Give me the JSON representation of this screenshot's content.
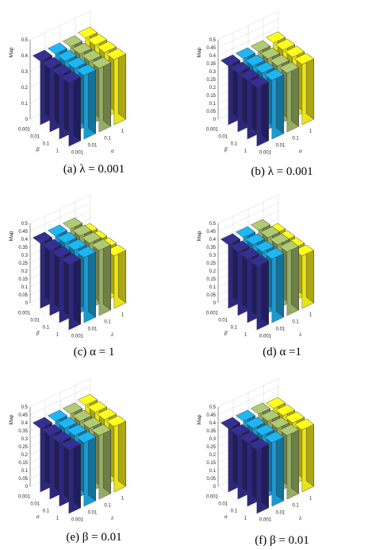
{
  "colors": {
    "c1": "#2f2a84",
    "c2": "#1aa3dc",
    "c3": "#9eb567",
    "c4": "#f5ef1a"
  },
  "panels_meta": [
    {
      "caption": "(a) λ = 0.001"
    },
    {
      "caption": "(b) λ = 0.001"
    },
    {
      "caption": "(c) α = 1"
    },
    {
      "caption": "(d) α =1"
    },
    {
      "caption": "(e) β = 0.01"
    },
    {
      "caption": "(f) β = 0.01"
    }
  ],
  "chart_data": [
    {
      "type": "bar3d",
      "ylabel": "Map",
      "ylim": [
        0,
        0.5
      ],
      "yticks": [
        "0",
        "0.1",
        "0.2",
        "0.3",
        "0.4",
        "0.5"
      ],
      "row_axis": {
        "label": "β",
        "ticks": [
          "0.001",
          "0.01",
          "0.1",
          "1"
        ]
      },
      "col_axis": {
        "label": "α",
        "ticks": [
          "0.001",
          "0.01",
          "0.1",
          "1"
        ]
      },
      "values": [
        [
          0.4,
          0.4,
          0.4,
          0.41
        ],
        [
          0.4,
          0.4,
          0.4,
          0.41
        ],
        [
          0.4,
          0.4,
          0.4,
          0.41
        ],
        [
          0.4,
          0.4,
          0.4,
          0.41
        ]
      ]
    },
    {
      "type": "bar3d",
      "ylabel": "Map",
      "ylim": [
        0,
        0.5
      ],
      "yticks": [
        "0",
        "0.05",
        "0.1",
        "0.15",
        "0.2",
        "0.25",
        "0.3",
        "0.35",
        "0.4",
        "0.45",
        "0.5"
      ],
      "row_axis": {
        "label": "β",
        "ticks": [
          "0.001",
          "0.01",
          "0.1",
          "1"
        ]
      },
      "col_axis": {
        "label": "α",
        "ticks": [
          "0.001",
          "0.01",
          "0.1",
          "1"
        ]
      },
      "values": [
        [
          0.37,
          0.37,
          0.37,
          0.38
        ],
        [
          0.37,
          0.37,
          0.37,
          0.38
        ],
        [
          0.37,
          0.37,
          0.37,
          0.38
        ],
        [
          0.37,
          0.37,
          0.37,
          0.38
        ]
      ]
    },
    {
      "type": "bar3d",
      "ylabel": "Map",
      "ylim": [
        0,
        0.5
      ],
      "yticks": [
        "0",
        "0.05",
        "0.1",
        "0.15",
        "0.2",
        "0.25",
        "0.3",
        "0.35",
        "0.4",
        "0.45",
        "0.5"
      ],
      "row_axis": {
        "label": "β",
        "ticks": [
          "0.001",
          "0.01",
          "0.1",
          "1"
        ]
      },
      "col_axis": {
        "label": "λ",
        "ticks": [
          "0.001",
          "0.01",
          "0.1",
          "1"
        ]
      },
      "values": [
        [
          0.41,
          0.41,
          0.41,
          0.33
        ],
        [
          0.41,
          0.41,
          0.41,
          0.33
        ],
        [
          0.41,
          0.41,
          0.41,
          0.33
        ],
        [
          0.41,
          0.41,
          0.41,
          0.33
        ]
      ]
    },
    {
      "type": "bar3d",
      "ylabel": "Map",
      "ylim": [
        0,
        0.5
      ],
      "yticks": [
        "0",
        "0.05",
        "0.1",
        "0.15",
        "0.2",
        "0.25",
        "0.3",
        "0.35",
        "0.4",
        "0.45",
        "0.5"
      ],
      "row_axis": {
        "label": "β",
        "ticks": [
          "0.001",
          "0.01",
          "0.1",
          "1"
        ]
      },
      "col_axis": {
        "label": "λ",
        "ticks": [
          "0.001",
          "0.01",
          "0.1",
          "1"
        ]
      },
      "values": [
        [
          0.4,
          0.4,
          0.4,
          0.33
        ],
        [
          0.4,
          0.4,
          0.4,
          0.33
        ],
        [
          0.4,
          0.4,
          0.4,
          0.33
        ],
        [
          0.4,
          0.4,
          0.4,
          0.33
        ]
      ]
    },
    {
      "type": "bar3d",
      "ylabel": "Map",
      "ylim": [
        0,
        0.5
      ],
      "yticks": [
        "0",
        "0.05",
        "0.1",
        "0.15",
        "0.2",
        "0.25",
        "0.3",
        "0.35",
        "0.4",
        "0.45",
        "0.5"
      ],
      "row_axis": {
        "label": "α",
        "ticks": [
          "0.001",
          "0.01",
          "0.1",
          "1"
        ]
      },
      "col_axis": {
        "label": "λ",
        "ticks": [
          "0.001",
          "0.01",
          "0.1",
          "1"
        ]
      },
      "values": [
        [
          0.4,
          0.4,
          0.4,
          0.41
        ],
        [
          0.4,
          0.4,
          0.4,
          0.41
        ],
        [
          0.4,
          0.4,
          0.4,
          0.41
        ],
        [
          0.4,
          0.4,
          0.4,
          0.41
        ]
      ]
    },
    {
      "type": "bar3d",
      "ylabel": "Map",
      "ylim": [
        0,
        0.5
      ],
      "yticks": [
        "0",
        "0.05",
        "0.1",
        "0.15",
        "0.2",
        "0.25",
        "0.3",
        "0.35",
        "0.4",
        "0.45",
        "0.5"
      ],
      "row_axis": {
        "label": "α",
        "ticks": [
          "0.001",
          "0.01",
          "0.1",
          "1"
        ]
      },
      "col_axis": {
        "label": "λ",
        "ticks": [
          "0.001",
          "0.01",
          "0.1",
          "1"
        ]
      },
      "values": [
        [
          0.4,
          0.4,
          0.4,
          0.39
        ],
        [
          0.4,
          0.4,
          0.4,
          0.39
        ],
        [
          0.4,
          0.4,
          0.4,
          0.39
        ],
        [
          0.4,
          0.4,
          0.4,
          0.39
        ]
      ]
    }
  ]
}
